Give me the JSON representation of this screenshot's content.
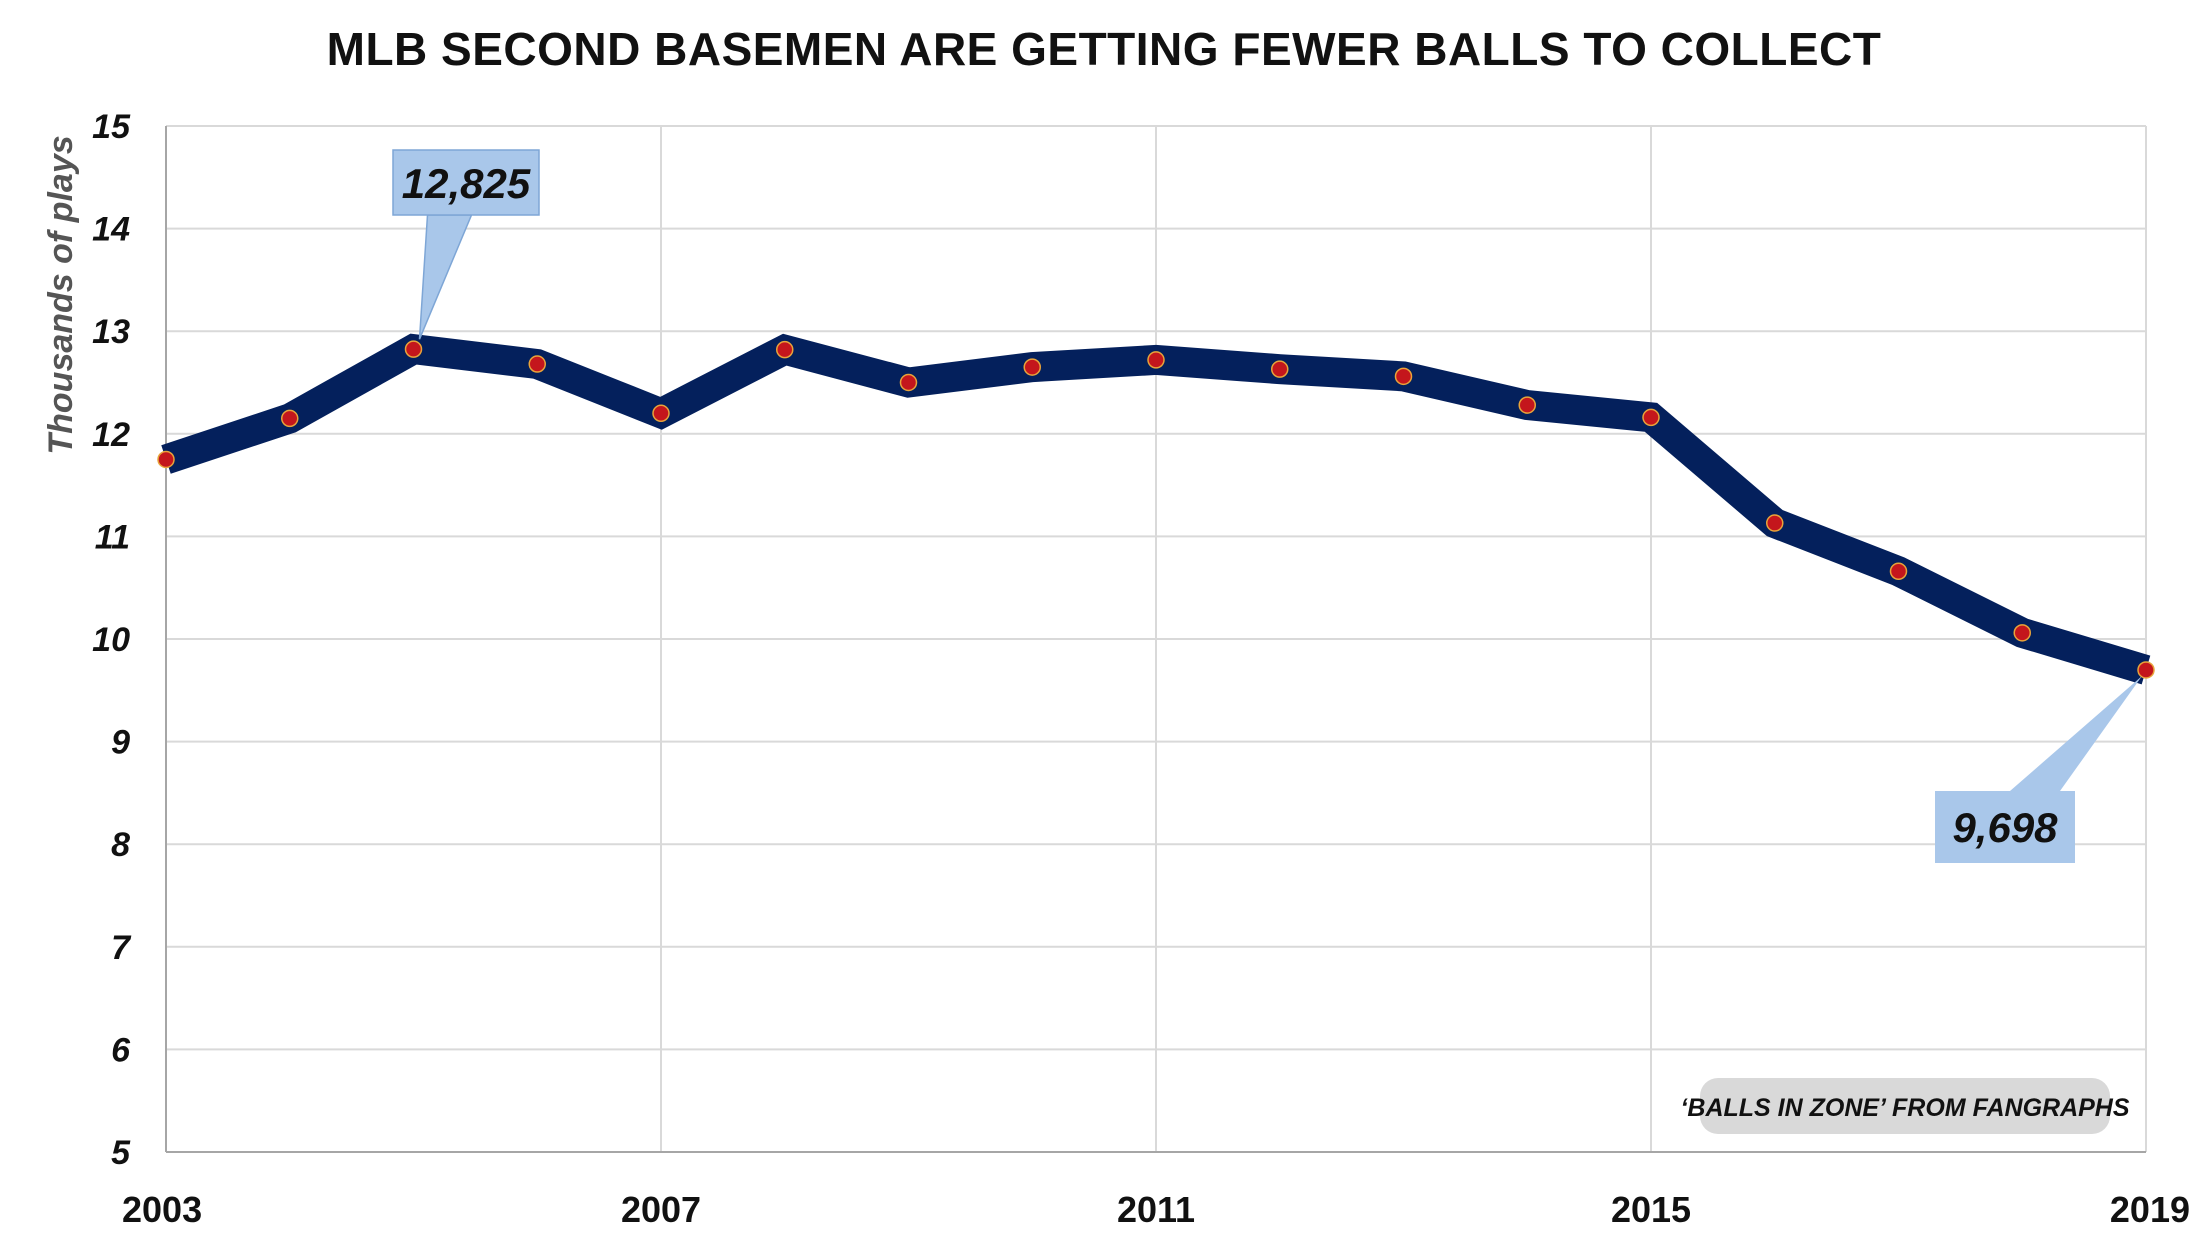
{
  "chart_data": {
    "type": "line",
    "title": "MLB SECOND BASEMEN ARE GETTING FEWER BALLS TO COLLECT",
    "ylabel": "Thousands of plays",
    "xlabel": "",
    "x": [
      2003,
      2004,
      2005,
      2006,
      2007,
      2008,
      2009,
      2010,
      2011,
      2012,
      2013,
      2014,
      2015,
      2016,
      2017,
      2018,
      2019
    ],
    "series": [
      {
        "values": [
          11.75,
          12.15,
          12.825,
          12.68,
          12.2,
          12.82,
          12.5,
          12.65,
          12.72,
          12.63,
          12.56,
          12.28,
          12.16,
          11.13,
          10.66,
          10.06,
          9.698
        ]
      }
    ],
    "ylim": [
      5,
      15
    ],
    "yticks": [
      5,
      6,
      7,
      8,
      9,
      10,
      11,
      12,
      13,
      14,
      15
    ],
    "xticks": [
      2003,
      2007,
      2011,
      2015,
      2019
    ],
    "grid": true,
    "annotations": [
      {
        "x": 2005,
        "y": 12.825,
        "text": "12,825"
      },
      {
        "x": 2019,
        "y": 9.698,
        "text": "9,698"
      }
    ],
    "source_note": "‘BALLS IN ZONE’ FROM FANGRAPHS",
    "colors": {
      "line": "#04205c",
      "marker_fill": "#c4161c",
      "marker_edge": "#e8a33a",
      "callout_fill": "#a9c7ea",
      "callout_stroke": "#7ea6d6",
      "grid": "#d9d9d9",
      "axis": "#a6a6a6",
      "source_bg": "#d9d9d9"
    }
  }
}
